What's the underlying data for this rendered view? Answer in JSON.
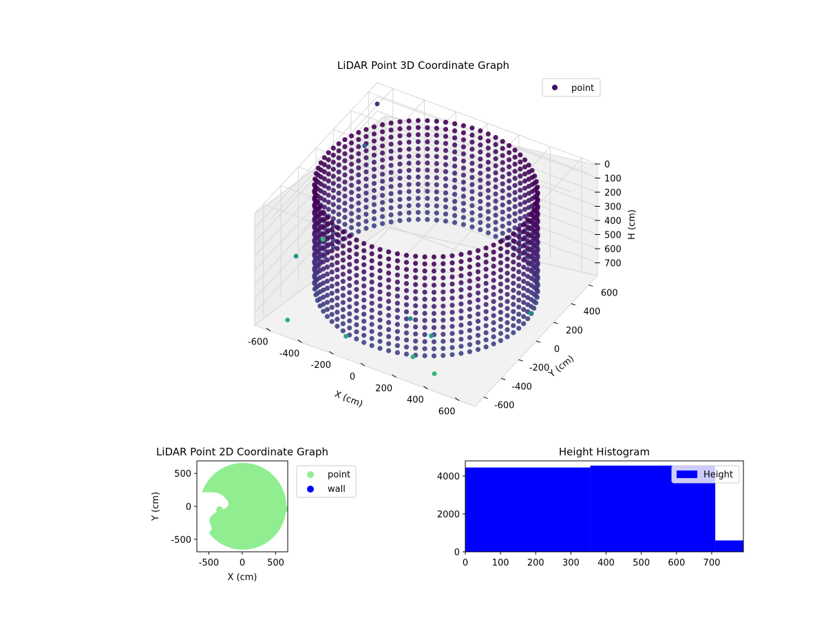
{
  "chart_data": [
    {
      "type": "scatter",
      "title": "LiDAR Point 3D Coordinate Graph",
      "xlabel": "X (cm)",
      "ylabel": "Y (cm)",
      "zlabel": "H (cm)",
      "xlim": [
        -700,
        700
      ],
      "ylim": [
        -700,
        700
      ],
      "zlim": [
        0,
        790
      ],
      "z_inverted": true,
      "x_ticks": [
        -600,
        -400,
        -200,
        0,
        200,
        400,
        600
      ],
      "y_ticks": [
        -600,
        -400,
        -200,
        0,
        200,
        400,
        600
      ],
      "z_ticks": [
        0,
        100,
        200,
        300,
        400,
        500,
        600,
        700
      ],
      "grid": true,
      "legend": [
        "point"
      ],
      "legend_position": "top-right",
      "colormap": "viridis",
      "series": [
        {
          "name": "point",
          "structure": "cylindrical wall",
          "radius": 620,
          "h_range": [
            0,
            700
          ],
          "outliers": [
            [
              -700,
              700,
              150
            ],
            [
              -680,
              520,
              320
            ],
            [
              -660,
              -300,
              550
            ],
            [
              -480,
              -720,
              650
            ],
            [
              250,
              -600,
              690
            ],
            [
              420,
              -660,
              700
            ],
            [
              300,
              -480,
              600
            ],
            [
              -120,
              -700,
              630
            ],
            [
              720,
              -100,
              520
            ],
            [
              150,
              -450,
              560
            ],
            [
              -700,
              80,
              700
            ]
          ]
        }
      ]
    },
    {
      "type": "scatter",
      "title": "LiDAR Point 2D Coordinate Graph",
      "xlabel": "X (cm)",
      "ylabel": "Y (cm)",
      "xlim": [
        -680,
        680
      ],
      "ylim": [
        -690,
        690
      ],
      "x_ticks": [
        -500,
        0,
        500
      ],
      "y_ticks": [
        -500,
        0,
        500
      ],
      "grid": false,
      "legend": [
        "point",
        "wall"
      ],
      "legend_position": "outside-right",
      "series": [
        {
          "name": "point",
          "color": "#90ee90",
          "shape": "filled disk",
          "radius": 640
        },
        {
          "name": "wall",
          "color": "#0000ff"
        }
      ]
    },
    {
      "type": "bar",
      "title": "Height Histogram",
      "xlim": [
        0,
        790
      ],
      "ylim": [
        0,
        4800
      ],
      "x_ticks": [
        0,
        100,
        200,
        300,
        400,
        500,
        600,
        700
      ],
      "y_ticks": [
        0,
        2000,
        4000
      ],
      "legend": [
        "Height"
      ],
      "legend_position": "top-right",
      "color": "#0000ff",
      "bins": [
        {
          "from": 0,
          "to": 355,
          "count": 4450
        },
        {
          "from": 355,
          "to": 710,
          "count": 4550
        },
        {
          "from": 710,
          "to": 790,
          "count": 600
        }
      ]
    }
  ],
  "colors": {
    "point_2d": "#90ee90",
    "wall": "#0000ff",
    "histogram": "#0000ff"
  }
}
